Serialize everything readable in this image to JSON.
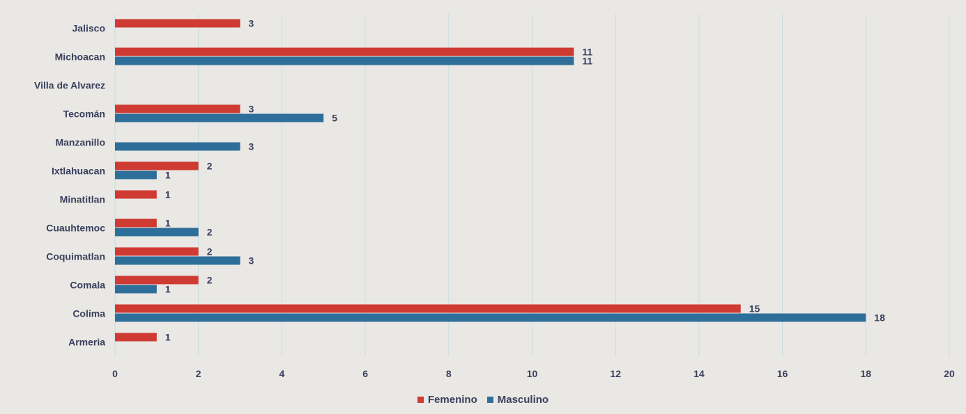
{
  "chart_data": {
    "type": "bar",
    "orientation": "horizontal",
    "categories": [
      "Jalisco",
      "Michoacan",
      "Villa de Alvarez",
      "Tecomán",
      "Manzanillo",
      "Ixtlahuacan",
      "Minatitlan",
      "Cuauhtemoc",
      "Coquimatlan",
      "Comala",
      "Colima",
      "Armeria"
    ],
    "series": [
      {
        "name": "Femenino",
        "color": "#cf3a32",
        "values": [
          3,
          11,
          null,
          3,
          null,
          2,
          1,
          1,
          2,
          2,
          15,
          1
        ]
      },
      {
        "name": "Masculino",
        "color": "#2e6e9a",
        "values": [
          null,
          11,
          null,
          5,
          3,
          1,
          null,
          2,
          3,
          1,
          18,
          null
        ]
      }
    ],
    "xticks": [
      "0",
      "2",
      "4",
      "6",
      "8",
      "10",
      "12",
      "14",
      "16",
      "18",
      "20"
    ],
    "xlim": [
      0,
      20
    ],
    "grid": true,
    "legend_position": "bottom"
  }
}
